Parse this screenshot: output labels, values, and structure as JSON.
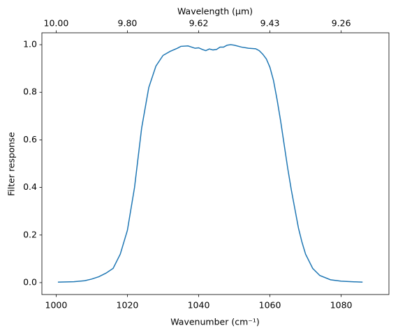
{
  "chart_data": {
    "type": "line",
    "xlabel": "Wavenumber (cm⁻¹)",
    "ylabel": "Filter response",
    "x2label": "Wavelength (μm)",
    "x": [
      1000.5,
      1005,
      1008,
      1010,
      1012,
      1014,
      1016,
      1018,
      1020,
      1022,
      1024,
      1026,
      1028,
      1030,
      1032,
      1034,
      1035,
      1037,
      1038,
      1039,
      1040,
      1041,
      1042,
      1043,
      1044,
      1045,
      1046,
      1047,
      1048,
      1049,
      1050,
      1052,
      1054,
      1056,
      1057,
      1058,
      1059,
      1060,
      1061,
      1062,
      1063,
      1064,
      1065,
      1066,
      1067,
      1068,
      1069,
      1070,
      1072,
      1074,
      1077,
      1080,
      1086
    ],
    "series": [
      {
        "color": "#1f77b4",
        "values": [
          0.002,
          0.004,
          0.008,
          0.015,
          0.025,
          0.04,
          0.06,
          0.12,
          0.22,
          0.4,
          0.65,
          0.82,
          0.91,
          0.955,
          0.972,
          0.985,
          0.993,
          0.995,
          0.99,
          0.985,
          0.987,
          0.98,
          0.975,
          0.982,
          0.978,
          0.98,
          0.99,
          0.99,
          0.998,
          1.0,
          0.998,
          0.99,
          0.985,
          0.983,
          0.975,
          0.96,
          0.94,
          0.905,
          0.85,
          0.77,
          0.68,
          0.58,
          0.48,
          0.39,
          0.31,
          0.23,
          0.17,
          0.12,
          0.06,
          0.03,
          0.012,
          0.006,
          0.002
        ]
      }
    ],
    "xlim": [
      996,
      1093.4
    ],
    "ylim": [
      -0.05,
      1.05
    ],
    "xticks": [
      1000,
      1020,
      1040,
      1060,
      1080
    ],
    "yticks": [
      {
        "value": 0,
        "label": "0.0"
      },
      {
        "value": 0.2,
        "label": "0.2"
      },
      {
        "value": 0.4,
        "label": "0.4"
      },
      {
        "value": 0.6,
        "label": "0.6"
      },
      {
        "value": 0.8,
        "label": "0.8"
      },
      {
        "value": 1,
        "label": "1.0"
      }
    ],
    "x2ticks": [
      {
        "value": 1000,
        "label": "10.00"
      },
      {
        "value": 1020,
        "label": "9.80"
      },
      {
        "value": 1040,
        "label": "9.62"
      },
      {
        "value": 1060,
        "label": "9.43"
      },
      {
        "value": 1080,
        "label": "9.26"
      }
    ],
    "grid": false
  }
}
